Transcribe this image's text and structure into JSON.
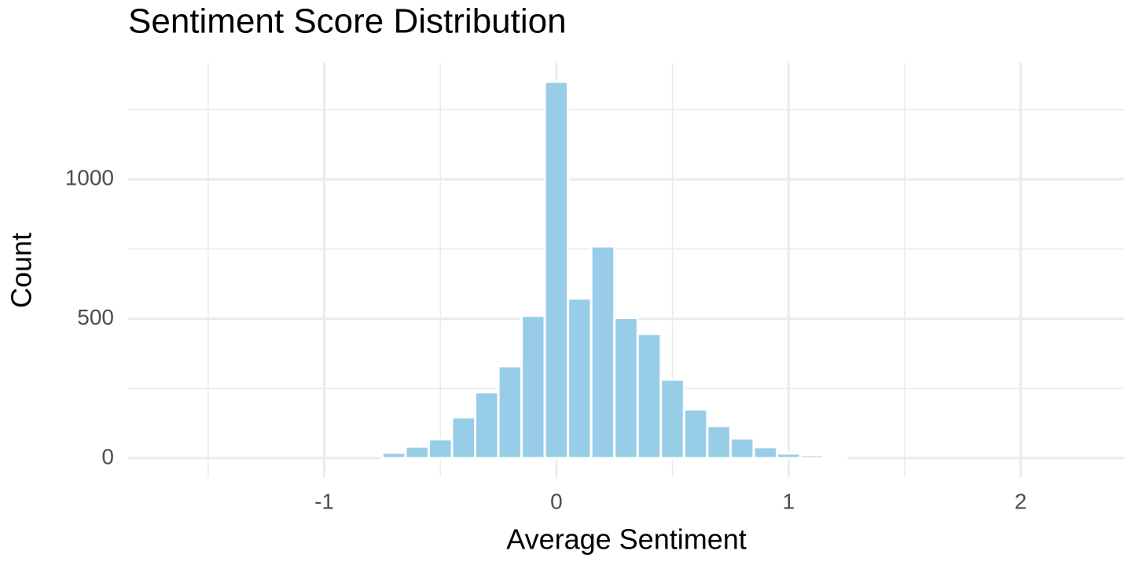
{
  "chart_data": {
    "type": "histogram",
    "title": "Sentiment Score Distribution",
    "x_label": "Average Sentiment",
    "y_label": "Count",
    "bins": [
      -1.65,
      -1.55,
      -1.45,
      -1.35,
      -1.25,
      -1.15,
      -1.05,
      -0.95,
      -0.85,
      -0.75,
      -0.65,
      -0.55,
      -0.45,
      -0.35,
      -0.25,
      -0.15,
      -0.05,
      0.05,
      0.15,
      0.25,
      0.35,
      0.45,
      0.55,
      0.65,
      0.75,
      0.85,
      0.95,
      1.05,
      1.15,
      1.25,
      1.35,
      1.45,
      1.55,
      1.65,
      1.75,
      1.85,
      1.95,
      2.05,
      2.15,
      2.25
    ],
    "values": [
      0,
      0,
      0,
      0,
      0,
      0,
      0,
      0,
      0,
      20,
      42,
      68,
      147,
      237,
      330,
      511,
      1350,
      573,
      760,
      503,
      446,
      282,
      175,
      116,
      71,
      40,
      17,
      11,
      8,
      0,
      0,
      0,
      0,
      0,
      0,
      0,
      0,
      0,
      0
    ],
    "color": "#98cde8",
    "xlim": [
      -1.845,
      2.445
    ],
    "xticks": [
      -1,
      0,
      1,
      2
    ],
    "x_minor_ticks": [
      -1.5,
      -0.5,
      0.5,
      1.5
    ],
    "ylim": [
      -67.5,
      1417.5
    ],
    "yticks": [
      0,
      500,
      1000
    ],
    "y_minor_ticks": [
      250,
      750,
      1250
    ],
    "grid": true
  }
}
